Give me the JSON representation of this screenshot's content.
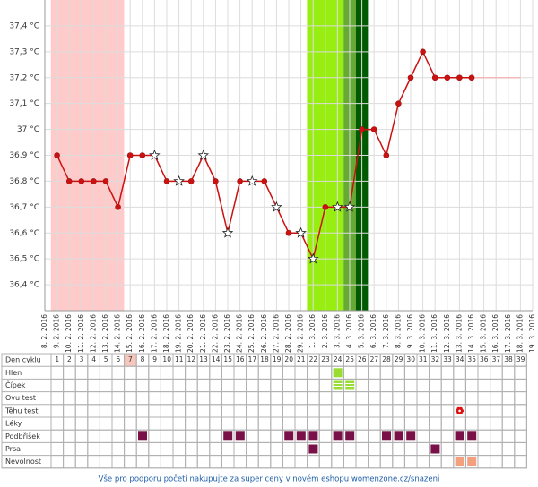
{
  "chart_data": {
    "type": "line",
    "categories": [
      "8. 2. 2016",
      "9. 2. 2016",
      "10. 2. 2016",
      "11. 2. 2016",
      "12. 2. 2016",
      "13. 2. 2016",
      "14. 2. 2016",
      "15. 2. 2016",
      "16. 2. 2016",
      "17. 2. 2016",
      "18. 2. 2016",
      "19. 2. 2016",
      "20. 2. 2016",
      "21. 2. 2016",
      "22. 2. 2016",
      "23. 2. 2016",
      "24. 2. 2016",
      "25. 2. 2016",
      "26. 2. 2016",
      "27. 2. 2016",
      "28. 2. 2016",
      "29. 2. 2016",
      "1. 3. 2016",
      "2. 3. 2016",
      "3. 3. 2016",
      "4. 3. 2016",
      "5. 3. 2016",
      "6. 3. 2016",
      "7. 3. 2016",
      "8. 3. 2016",
      "9. 3. 2016",
      "10. 3. 2016",
      "11. 3. 2016",
      "12. 3. 2016",
      "13. 3. 2016",
      "14. 3. 2016",
      "15. 3. 2016",
      "16. 3. 2016",
      "17. 3. 2016",
      "18. 3. 2016",
      "19. 3. 2016"
    ],
    "series": [
      {
        "color": "#cc1111",
        "values": [
          null,
          36.9,
          36.8,
          36.8,
          36.8,
          36.8,
          36.7,
          36.9,
          36.9,
          36.9,
          36.8,
          36.8,
          36.8,
          36.9,
          36.8,
          36.6,
          36.8,
          36.8,
          36.8,
          36.7,
          36.6,
          36.6,
          36.5,
          36.7,
          36.7,
          36.7,
          37.0,
          37.0,
          36.9,
          37.1,
          37.2,
          37.3,
          37.2,
          37.2,
          37.2,
          37.2,
          null,
          null,
          null,
          null,
          null
        ],
        "markers": [
          null,
          "circle",
          "circle",
          "circle",
          "circle",
          "circle",
          "circle",
          "circle",
          "circle",
          "star",
          "circle",
          "star",
          "circle",
          "star",
          "circle",
          "star",
          "circle",
          "star",
          "circle",
          "star",
          "circle",
          "star",
          "star",
          "circle",
          "star",
          "star",
          "circle",
          "circle",
          "circle",
          "circle",
          "circle",
          "circle",
          "circle",
          "circle",
          "circle",
          "circle",
          null,
          null,
          null,
          null,
          null
        ]
      },
      {
        "color": "#f2b8b8",
        "values": [
          null,
          null,
          null,
          null,
          null,
          null,
          null,
          null,
          null,
          null,
          null,
          null,
          null,
          null,
          null,
          null,
          null,
          null,
          null,
          null,
          null,
          null,
          null,
          null,
          null,
          null,
          null,
          null,
          null,
          null,
          null,
          null,
          null,
          null,
          null,
          37.2,
          37.2,
          37.2,
          37.2,
          37.2,
          null
        ]
      }
    ],
    "bands": [
      {
        "from": 0.5,
        "to": 6.5,
        "color": "#ffcaca"
      },
      {
        "from": 21.5,
        "to": 24.5,
        "color": "#99ee11"
      },
      {
        "from": 24.5,
        "to": 25.5,
        "color": "#66aa33"
      },
      {
        "from": 25.5,
        "to": 26.5,
        "color": "#005a00"
      }
    ],
    "ylim": [
      36.3,
      37.5
    ],
    "yticks": [
      {
        "value": 36.4,
        "label": "36,4 °C"
      },
      {
        "value": 36.5,
        "label": "36,5 °C"
      },
      {
        "value": 36.6,
        "label": "36,6 °C"
      },
      {
        "value": 36.7,
        "label": "36,7 °C"
      },
      {
        "value": 36.8,
        "label": "36,8 °C"
      },
      {
        "value": 36.9,
        "label": "36,9 °C"
      },
      {
        "value": 37.0,
        "label": "37 °C"
      },
      {
        "value": 37.1,
        "label": "37,1 °C"
      },
      {
        "value": 37.2,
        "label": "37,2 °C"
      },
      {
        "value": 37.3,
        "label": "37,3 °C"
      },
      {
        "value": 37.4,
        "label": "37,4 °C"
      }
    ],
    "grid": true
  },
  "table": {
    "header_label": "Den cyklu",
    "days": [
      1,
      2,
      3,
      4,
      5,
      6,
      7,
      8,
      9,
      10,
      11,
      12,
      13,
      14,
      15,
      16,
      17,
      18,
      19,
      20,
      21,
      22,
      23,
      24,
      25,
      26,
      27,
      28,
      29,
      30,
      31,
      32,
      33,
      34,
      35,
      36,
      37,
      38,
      39
    ],
    "highlight_day": 7,
    "rows": [
      {
        "label": "Hlen",
        "days": [
          24
        ],
        "color": "#99dd33",
        "style": "square"
      },
      {
        "label": "Čípek",
        "days": [
          24,
          25
        ],
        "color": "#99dd33",
        "style": "striped"
      },
      {
        "label": "Ovu test",
        "days": [],
        "color": "#99dd33",
        "style": "square"
      },
      {
        "label": "Těhu test",
        "days": [
          34
        ],
        "color": "#dd1111",
        "style": "flower"
      },
      {
        "label": "Léky",
        "days": [],
        "color": "#7a1048",
        "style": "square"
      },
      {
        "label": "Podbřišek",
        "days": [
          8,
          15,
          16,
          20,
          21,
          22,
          24,
          25,
          28,
          29,
          30,
          34,
          35
        ],
        "color": "#7a1048",
        "style": "square"
      },
      {
        "label": "Prsa",
        "days": [
          22,
          32
        ],
        "color": "#7a1048",
        "style": "square"
      },
      {
        "label": "Nevolnost",
        "days": [
          34,
          35
        ],
        "color": "#f4a07e",
        "style": "square"
      }
    ]
  },
  "footer": "Vše pro podporu početí nakupujte za super ceny v novém eshopu womenzone.cz/snazeni"
}
